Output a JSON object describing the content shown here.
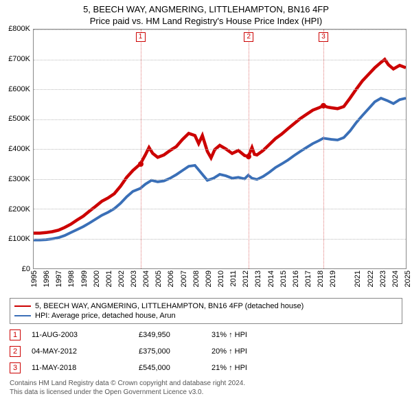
{
  "title_line1": "5, BEECH WAY, ANGMERING, LITTLEHAMPTON, BN16 4FP",
  "title_line2": "Price paid vs. HM Land Registry's House Price Index (HPI)",
  "title_fontsize": 13,
  "chart": {
    "type": "line",
    "background_color": "#ffffff",
    "grid_color": "#bbbbbb",
    "border_color": "#888888",
    "x_years": [
      1995,
      1996,
      1997,
      1998,
      1999,
      2000,
      2001,
      2002,
      2003,
      2004,
      2005,
      2006,
      2007,
      2008,
      2009,
      2010,
      2011,
      2012,
      2013,
      2014,
      2015,
      2016,
      2017,
      2018,
      2019,
      2021,
      2022,
      2023,
      2024,
      2025
    ],
    "x_tick_fontsize": 11,
    "y_min": 0,
    "y_max": 800000,
    "y_tick_step": 100000,
    "y_tick_labels": [
      "£0",
      "£100K",
      "£200K",
      "£300K",
      "£400K",
      "£500K",
      "£600K",
      "£700K",
      "£800K"
    ],
    "y_tick_fontsize": 11,
    "series": [
      {
        "name": "price_paid",
        "legend_label": "5, BEECH WAY, ANGMERING, LITTLEHAMPTON, BN16 4FP (detached house)",
        "color": "#cc0000",
        "line_width": 1.5,
        "points": [
          [
            1995.0,
            118000
          ],
          [
            1995.5,
            118000
          ],
          [
            1996.0,
            120000
          ],
          [
            1996.5,
            123000
          ],
          [
            1997.0,
            128000
          ],
          [
            1997.5,
            137000
          ],
          [
            1998.0,
            148000
          ],
          [
            1998.5,
            162000
          ],
          [
            1999.0,
            175000
          ],
          [
            1999.5,
            192000
          ],
          [
            2000.0,
            208000
          ],
          [
            2000.5,
            225000
          ],
          [
            2001.0,
            236000
          ],
          [
            2001.5,
            250000
          ],
          [
            2002.0,
            275000
          ],
          [
            2002.5,
            305000
          ],
          [
            2003.0,
            328000
          ],
          [
            2003.6,
            349950
          ],
          [
            2004.0,
            380000
          ],
          [
            2004.3,
            405000
          ],
          [
            2004.6,
            385000
          ],
          [
            2005.0,
            372000
          ],
          [
            2005.5,
            380000
          ],
          [
            2006.0,
            395000
          ],
          [
            2006.5,
            408000
          ],
          [
            2007.0,
            432000
          ],
          [
            2007.5,
            452000
          ],
          [
            2008.0,
            445000
          ],
          [
            2008.3,
            418000
          ],
          [
            2008.6,
            445000
          ],
          [
            2009.0,
            392000
          ],
          [
            2009.3,
            370000
          ],
          [
            2009.6,
            398000
          ],
          [
            2010.0,
            412000
          ],
          [
            2010.5,
            400000
          ],
          [
            2011.0,
            385000
          ],
          [
            2011.5,
            395000
          ],
          [
            2012.0,
            378000
          ],
          [
            2012.3,
            375000
          ],
          [
            2012.6,
            405000
          ],
          [
            2012.8,
            382000
          ],
          [
            2013.0,
            380000
          ],
          [
            2013.5,
            395000
          ],
          [
            2014.0,
            415000
          ],
          [
            2014.5,
            435000
          ],
          [
            2015.0,
            450000
          ],
          [
            2015.5,
            468000
          ],
          [
            2016.0,
            485000
          ],
          [
            2016.5,
            502000
          ],
          [
            2017.0,
            516000
          ],
          [
            2017.5,
            530000
          ],
          [
            2018.0,
            538000
          ],
          [
            2018.35,
            545000
          ],
          [
            2018.7,
            540000
          ],
          [
            2019.0,
            538000
          ],
          [
            2019.5,
            535000
          ],
          [
            2020.0,
            542000
          ],
          [
            2020.5,
            570000
          ],
          [
            2021.0,
            600000
          ],
          [
            2021.5,
            628000
          ],
          [
            2022.0,
            650000
          ],
          [
            2022.5,
            672000
          ],
          [
            2023.0,
            690000
          ],
          [
            2023.3,
            700000
          ],
          [
            2023.6,
            682000
          ],
          [
            2024.0,
            668000
          ],
          [
            2024.5,
            680000
          ],
          [
            2025.0,
            672000
          ]
        ]
      },
      {
        "name": "hpi",
        "legend_label": "HPI: Average price, detached house, Arun",
        "color": "#3a6fb7",
        "line_width": 1.3,
        "points": [
          [
            1995.0,
            95000
          ],
          [
            1995.5,
            95000
          ],
          [
            1996.0,
            96000
          ],
          [
            1996.5,
            99000
          ],
          [
            1997.0,
            103000
          ],
          [
            1997.5,
            110000
          ],
          [
            1998.0,
            120000
          ],
          [
            1998.5,
            130000
          ],
          [
            1999.0,
            140000
          ],
          [
            1999.5,
            152000
          ],
          [
            2000.0,
            165000
          ],
          [
            2000.5,
            178000
          ],
          [
            2001.0,
            188000
          ],
          [
            2001.5,
            200000
          ],
          [
            2002.0,
            218000
          ],
          [
            2002.5,
            240000
          ],
          [
            2003.0,
            258000
          ],
          [
            2003.6,
            268000
          ],
          [
            2004.0,
            282000
          ],
          [
            2004.5,
            295000
          ],
          [
            2005.0,
            290000
          ],
          [
            2005.5,
            293000
          ],
          [
            2006.0,
            302000
          ],
          [
            2006.5,
            314000
          ],
          [
            2007.0,
            328000
          ],
          [
            2007.5,
            342000
          ],
          [
            2008.0,
            345000
          ],
          [
            2008.5,
            320000
          ],
          [
            2009.0,
            295000
          ],
          [
            2009.5,
            302000
          ],
          [
            2010.0,
            315000
          ],
          [
            2010.5,
            310000
          ],
          [
            2011.0,
            302000
          ],
          [
            2011.5,
            305000
          ],
          [
            2012.0,
            300000
          ],
          [
            2012.3,
            312000
          ],
          [
            2012.6,
            302000
          ],
          [
            2013.0,
            298000
          ],
          [
            2013.5,
            308000
          ],
          [
            2014.0,
            322000
          ],
          [
            2014.5,
            338000
          ],
          [
            2015.0,
            350000
          ],
          [
            2015.5,
            363000
          ],
          [
            2016.0,
            378000
          ],
          [
            2016.5,
            392000
          ],
          [
            2017.0,
            405000
          ],
          [
            2017.5,
            418000
          ],
          [
            2018.0,
            428000
          ],
          [
            2018.35,
            436000
          ],
          [
            2019.0,
            432000
          ],
          [
            2019.5,
            430000
          ],
          [
            2020.0,
            438000
          ],
          [
            2020.5,
            460000
          ],
          [
            2021.0,
            488000
          ],
          [
            2021.5,
            512000
          ],
          [
            2022.0,
            535000
          ],
          [
            2022.5,
            558000
          ],
          [
            2023.0,
            570000
          ],
          [
            2023.5,
            562000
          ],
          [
            2024.0,
            552000
          ],
          [
            2024.5,
            565000
          ],
          [
            2025.0,
            570000
          ]
        ]
      }
    ],
    "sale_markers": [
      {
        "n": "1",
        "year": 2003.61,
        "price": 349950,
        "line_color": "#e07878"
      },
      {
        "n": "2",
        "year": 2012.34,
        "price": 375000,
        "line_color": "#e07878"
      },
      {
        "n": "3",
        "year": 2018.36,
        "price": 545000,
        "line_color": "#e07878"
      }
    ],
    "marker_box_border": "#cc0000",
    "marker_box_text": "#cc0000",
    "dot_color": "#cc0000"
  },
  "legend": {
    "border_color": "#888888",
    "fontsize": 11
  },
  "sales_table": {
    "rows": [
      {
        "n": "1",
        "date": "11-AUG-2003",
        "price": "£349,950",
        "diff": "31% ↑ HPI"
      },
      {
        "n": "2",
        "date": "04-MAY-2012",
        "price": "£375,000",
        "diff": "20% ↑ HPI"
      },
      {
        "n": "3",
        "date": "11-MAY-2018",
        "price": "£545,000",
        "diff": "21% ↑ HPI"
      }
    ],
    "badge_border": "#cc0000",
    "fontsize": 11
  },
  "footer": {
    "line1": "Contains HM Land Registry data © Crown copyright and database right 2024.",
    "line2": "This data is licensed under the Open Government Licence v3.0.",
    "color": "#555555",
    "fontsize": 10
  }
}
